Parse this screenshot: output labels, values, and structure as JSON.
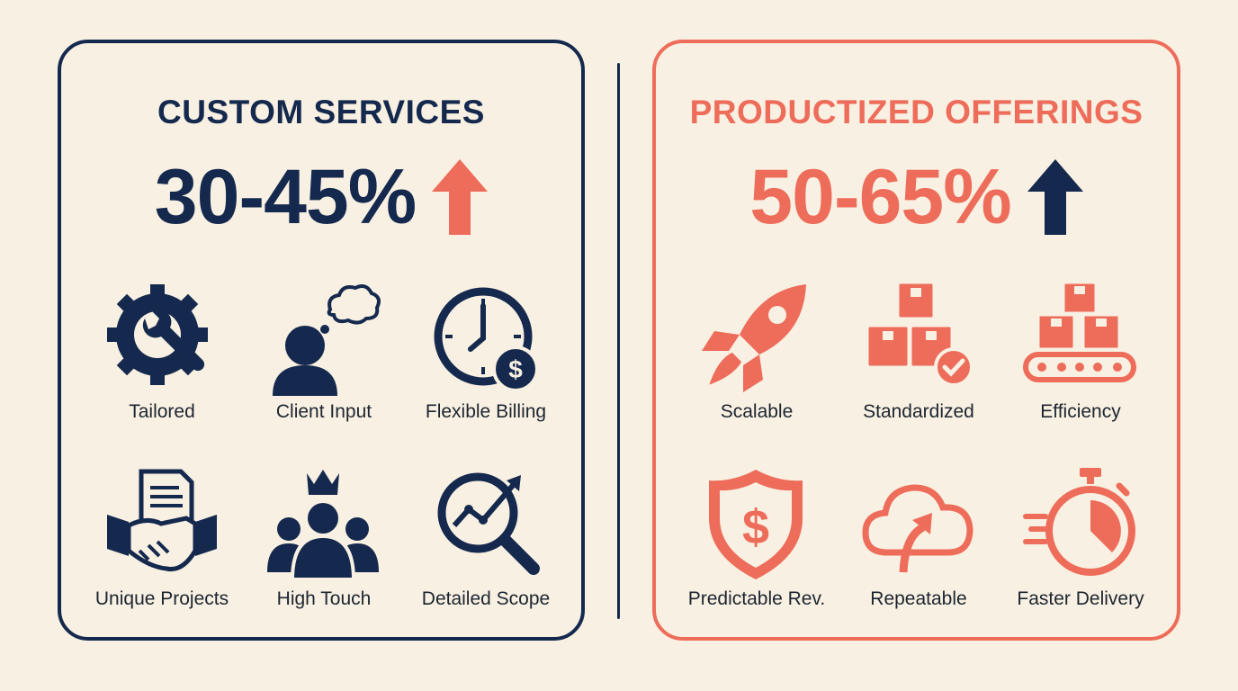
{
  "custom": {
    "title": "CUSTOM SERVICES",
    "margin": "30-45%",
    "items": [
      {
        "label": "Tailored",
        "icon": "gear-wrench-icon"
      },
      {
        "label": "Client Input",
        "icon": "person-thought-icon"
      },
      {
        "label": "Flexible Billing",
        "icon": "clock-dollar-icon"
      },
      {
        "label": "Unique Projects",
        "icon": "handshake-document-icon"
      },
      {
        "label": "High Touch",
        "icon": "team-crown-icon"
      },
      {
        "label": "Detailed Scope",
        "icon": "magnifier-chart-icon"
      }
    ]
  },
  "productized": {
    "title": "PRODUCTIZED OFFERINGS",
    "margin": "50-65%",
    "items": [
      {
        "label": "Scalable",
        "icon": "rocket-icon"
      },
      {
        "label": "Standardized",
        "icon": "boxes-check-icon"
      },
      {
        "label": "Efficiency",
        "icon": "conveyor-boxes-icon"
      },
      {
        "label": "Predictable Rev.",
        "icon": "shield-dollar-icon"
      },
      {
        "label": "Repeatable",
        "icon": "cloud-upload-icon"
      },
      {
        "label": "Faster Delivery",
        "icon": "stopwatch-icon"
      }
    ]
  },
  "colors": {
    "navy": "#14294d",
    "coral": "#ee6c5a",
    "background": "#f8f0e2"
  }
}
